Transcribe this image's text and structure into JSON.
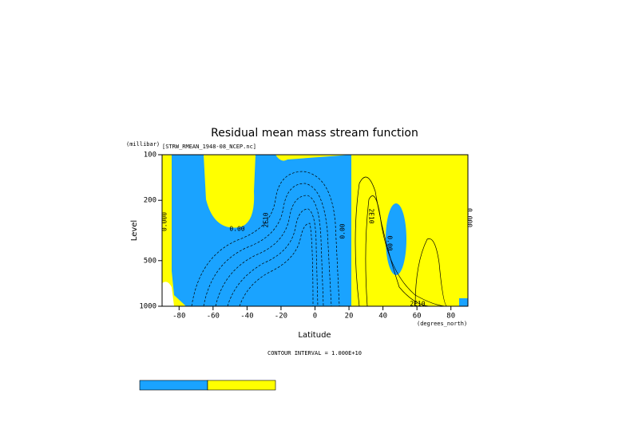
{
  "chart_data": {
    "type": "contour",
    "title": "Residual mean mass stream function",
    "subtitle": "[STRW_RMEAN_1948-08_NCEP.nc]",
    "ylabel_units": "(millibar)",
    "ylabel": "Level",
    "xlabel": "Latitude",
    "xlabel_units": "(degrees_north)",
    "note": "CONTOUR INTERVAL = 1.000E+10",
    "xlim": [
      -90,
      90
    ],
    "xticks": [
      -80,
      -60,
      -40,
      -20,
      0,
      20,
      40,
      60,
      80
    ],
    "ylim": [
      1000,
      100
    ],
    "yticks": [
      100,
      200,
      500,
      1000
    ],
    "log_y": true,
    "contour_labels": [
      "0.000",
      "0.00",
      "2E10",
      "0.00",
      "2E10",
      "0.00",
      "0.000",
      "2E10"
    ],
    "negative_color": "#1aa3ff",
    "positive_color": "#ffff00"
  }
}
